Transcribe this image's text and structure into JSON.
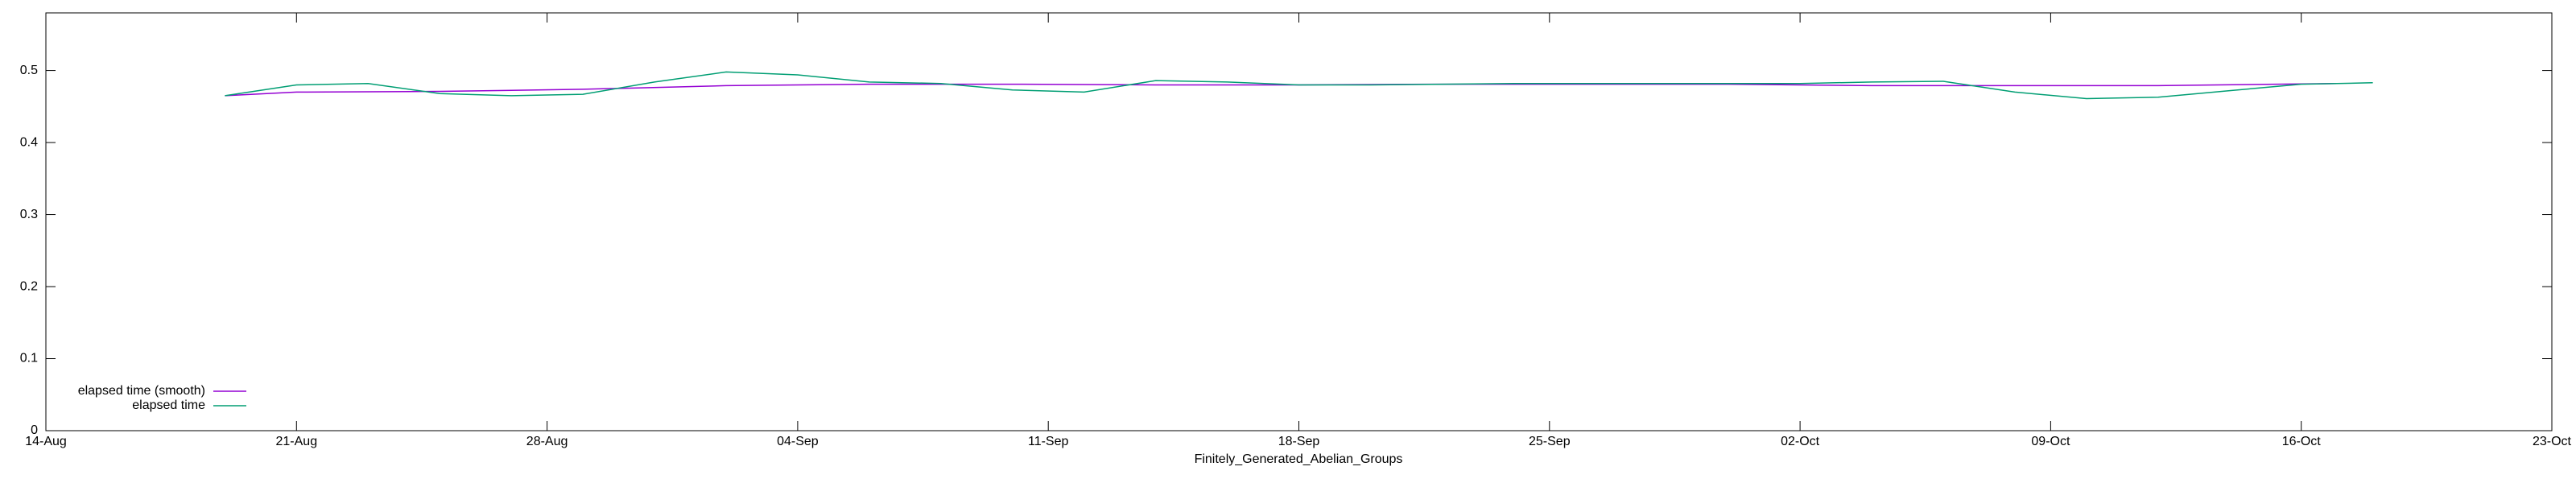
{
  "chart_data": {
    "type": "line",
    "xlabel": "Finitely_Generated_Abelian_Groups",
    "xlim": [
      "08-14",
      "10-23"
    ],
    "xticks": [
      {
        "value": "08-14",
        "label": "14-Aug"
      },
      {
        "value": "08-21",
        "label": "21-Aug"
      },
      {
        "value": "08-28",
        "label": "28-Aug"
      },
      {
        "value": "09-04",
        "label": "04-Sep"
      },
      {
        "value": "09-11",
        "label": "11-Sep"
      },
      {
        "value": "09-18",
        "label": "18-Sep"
      },
      {
        "value": "09-25",
        "label": "25-Sep"
      },
      {
        "value": "10-02",
        "label": "02-Oct"
      },
      {
        "value": "10-09",
        "label": "09-Oct"
      },
      {
        "value": "10-16",
        "label": "16-Oct"
      },
      {
        "value": "10-23",
        "label": "23-Oct"
      }
    ],
    "ylim": [
      0,
      0.58
    ],
    "yticks": [
      0,
      0.1,
      0.2,
      0.3,
      0.4,
      0.5
    ],
    "legend": "bottom-left",
    "series": [
      {
        "name": "elapsed time (smooth)",
        "color": "#9400d3",
        "x": [
          "08-19",
          "08-21",
          "08-25",
          "08-29",
          "09-02",
          "09-06",
          "09-10",
          "09-14",
          "09-18",
          "09-22",
          "09-26",
          "09-30",
          "10-04",
          "10-08",
          "10-12",
          "10-17"
        ],
        "values": [
          0.465,
          0.47,
          0.471,
          0.474,
          0.479,
          0.481,
          0.481,
          0.48,
          0.48,
          0.481,
          0.481,
          0.481,
          0.479,
          0.479,
          0.479,
          0.482
        ]
      },
      {
        "name": "elapsed time",
        "color": "#009e73",
        "x": [
          "08-19",
          "08-21",
          "08-23",
          "08-25",
          "08-27",
          "08-29",
          "08-31",
          "09-02",
          "09-04",
          "09-06",
          "09-08",
          "09-10",
          "09-12",
          "09-14",
          "09-16",
          "09-18",
          "09-20",
          "09-22",
          "09-24",
          "09-26",
          "09-28",
          "09-30",
          "10-02",
          "10-04",
          "10-06",
          "10-08",
          "10-10",
          "10-12",
          "10-14",
          "10-16",
          "10-18"
        ],
        "values": [
          0.465,
          0.48,
          0.482,
          0.468,
          0.465,
          0.467,
          0.484,
          0.498,
          0.494,
          0.484,
          0.482,
          0.473,
          0.47,
          0.486,
          0.484,
          0.48,
          0.48,
          0.481,
          0.482,
          0.482,
          0.482,
          0.482,
          0.482,
          0.484,
          0.485,
          0.47,
          0.461,
          0.463,
          0.472,
          0.481,
          0.483
        ]
      }
    ]
  }
}
